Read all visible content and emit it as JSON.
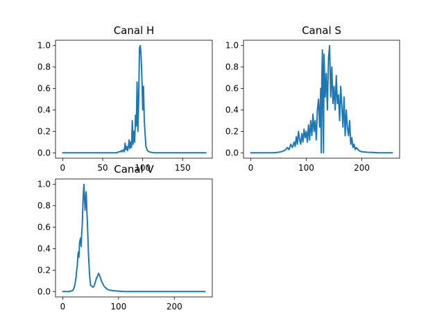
{
  "chart_data": [
    {
      "type": "line",
      "title": "Canal H",
      "xlabel": "",
      "ylabel": "",
      "xlim": [
        -9,
        187
      ],
      "ylim": [
        -0.05,
        1.05
      ],
      "xticks": [
        0,
        50,
        100,
        150
      ],
      "xtick_labels": [
        "0",
        "50",
        "100",
        "150"
      ],
      "yticks": [
        0,
        0.2,
        0.4,
        0.6,
        0.8,
        1.0
      ],
      "ytick_labels": [
        "0.0",
        "0.2",
        "0.4",
        "0.6",
        "0.8",
        "1.0"
      ],
      "grid": false,
      "color": "#1f77b4",
      "x": [
        0,
        60,
        68,
        70,
        72,
        73,
        74,
        76,
        77,
        78,
        79,
        80,
        81,
        82,
        83,
        84,
        85,
        86,
        87,
        88,
        89,
        90,
        91,
        92,
        93,
        94,
        95,
        96,
        97,
        98,
        99,
        100,
        101,
        102,
        103,
        104,
        105,
        106,
        107,
        108,
        110,
        112,
        115,
        120,
        179
      ],
      "y": [
        0,
        0,
        0,
        0.01,
        0.01,
        0.02,
        0.01,
        0.03,
        0.01,
        0.09,
        0.03,
        0.06,
        0.02,
        0.05,
        0.12,
        0.04,
        0.1,
        0.05,
        0.3,
        0.08,
        0.2,
        0.1,
        0.35,
        0.25,
        0.66,
        0.2,
        0.5,
        0.98,
        1.0,
        0.9,
        0.7,
        0.4,
        0.62,
        0.3,
        0.18,
        0.06,
        0.04,
        0.02,
        0.015,
        0.01,
        0.005,
        0.003,
        0,
        0,
        0
      ]
    },
    {
      "type": "line",
      "title": "Canal S",
      "xlabel": "",
      "ylabel": "",
      "xlim": [
        -13,
        268
      ],
      "ylim": [
        -0.05,
        1.05
      ],
      "xticks": [
        0,
        100,
        200
      ],
      "xtick_labels": [
        "0",
        "100",
        "200"
      ],
      "yticks": [
        0,
        0.2,
        0.4,
        0.6,
        0.8,
        1.0
      ],
      "ytick_labels": [
        "0.0",
        "0.2",
        "0.4",
        "0.6",
        "0.8",
        "1.0"
      ],
      "grid": false,
      "color": "#1f77b4",
      "x": [
        0,
        40,
        50,
        55,
        60,
        63,
        66,
        69,
        72,
        75,
        78,
        80,
        82,
        84,
        86,
        88,
        90,
        92,
        94,
        96,
        98,
        100,
        102,
        104,
        106,
        108,
        110,
        112,
        114,
        116,
        118,
        120,
        122,
        124,
        126,
        127,
        128,
        129,
        130,
        131,
        132,
        134,
        136,
        138,
        140,
        142,
        144,
        146,
        148,
        150,
        152,
        154,
        156,
        158,
        160,
        162,
        164,
        166,
        168,
        170,
        172,
        174,
        176,
        178,
        180,
        182,
        184,
        186,
        188,
        190,
        195,
        200,
        210,
        220,
        230,
        255
      ],
      "y": [
        0,
        0,
        0.005,
        0.01,
        0.02,
        0.03,
        0.05,
        0.03,
        0.08,
        0.05,
        0.1,
        0.06,
        0.15,
        0.08,
        0.2,
        0.12,
        0.08,
        0.18,
        0.1,
        0.22,
        0.14,
        0.2,
        0.1,
        0.26,
        0.12,
        0.3,
        0.16,
        0.36,
        0.2,
        0.3,
        0.12,
        0.4,
        0.5,
        0.24,
        0.6,
        0.0,
        0.7,
        0.96,
        0.46,
        0.0,
        0.92,
        0.52,
        0.74,
        0.4,
        0.88,
        1.0,
        0.52,
        0.8,
        0.46,
        0.62,
        0.4,
        0.72,
        0.46,
        0.54,
        0.3,
        0.62,
        0.44,
        0.24,
        0.52,
        0.16,
        0.4,
        0.24,
        0.16,
        0.3,
        0.08,
        0.14,
        0.05,
        0.08,
        0.03,
        0.05,
        0.02,
        0.01,
        0.005,
        0.003,
        0,
        0
      ]
    },
    {
      "type": "line",
      "title": "Canal V",
      "xlabel": "",
      "ylabel": "",
      "xlim": [
        -13,
        268
      ],
      "ylim": [
        -0.05,
        1.05
      ],
      "xticks": [
        0,
        100,
        200
      ],
      "xtick_labels": [
        "0",
        "100",
        "200"
      ],
      "yticks": [
        0,
        0.2,
        0.4,
        0.6,
        0.8,
        1.0
      ],
      "ytick_labels": [
        "0.0",
        "0.2",
        "0.4",
        "0.6",
        "0.8",
        "1.0"
      ],
      "grid": false,
      "color": "#1f77b4",
      "x": [
        0,
        10,
        15,
        18,
        20,
        22,
        24,
        25,
        26,
        27,
        28,
        29,
        30,
        31,
        32,
        33,
        34,
        35,
        36,
        37,
        38,
        39,
        40,
        41,
        42,
        43,
        44,
        45,
        46,
        47,
        48,
        49,
        50,
        52,
        54,
        56,
        58,
        60,
        62,
        64,
        66,
        68,
        70,
        72,
        74,
        76,
        78,
        80,
        85,
        90,
        95,
        100,
        110,
        255
      ],
      "y": [
        0,
        0,
        0.005,
        0.01,
        0.03,
        0.07,
        0.14,
        0.2,
        0.24,
        0.33,
        0.37,
        0.32,
        0.45,
        0.48,
        0.5,
        0.42,
        0.55,
        0.62,
        0.8,
        0.92,
        1.0,
        0.88,
        0.76,
        0.86,
        0.93,
        0.78,
        0.66,
        0.52,
        0.36,
        0.26,
        0.16,
        0.1,
        0.06,
        0.05,
        0.04,
        0.05,
        0.08,
        0.12,
        0.14,
        0.17,
        0.15,
        0.12,
        0.09,
        0.07,
        0.05,
        0.04,
        0.03,
        0.02,
        0.012,
        0.008,
        0.006,
        0.004,
        0,
        0
      ]
    }
  ]
}
